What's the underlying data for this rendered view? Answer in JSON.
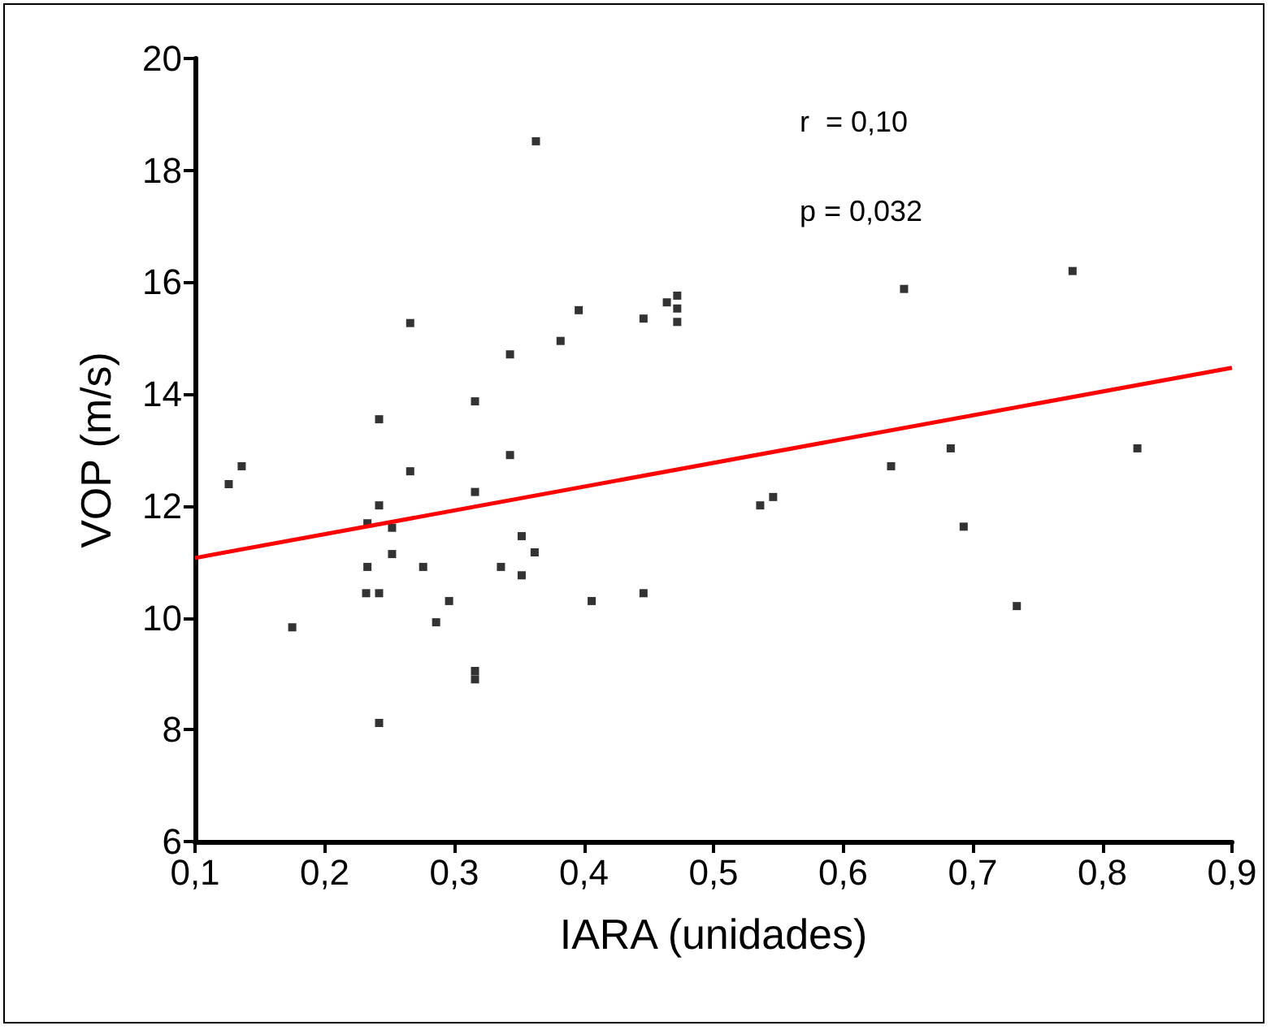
{
  "chart_data": {
    "type": "scatter",
    "xlabel": "IARA (unidades)",
    "ylabel": "VOP (m/s)",
    "annotations": [
      "r  = 0,10",
      "p = 0,032"
    ],
    "xlim": [
      0.1,
      0.9
    ],
    "xticks": [
      {
        "value": 0.1,
        "label": "0,1"
      },
      {
        "value": 0.2,
        "label": "0,2"
      },
      {
        "value": 0.3,
        "label": "0,3"
      },
      {
        "value": 0.4,
        "label": "0,4"
      },
      {
        "value": 0.5,
        "label": "0,5"
      },
      {
        "value": 0.6,
        "label": "0,6"
      },
      {
        "value": 0.7,
        "label": "0,7"
      },
      {
        "value": 0.8,
        "label": "0,8"
      },
      {
        "value": 0.9,
        "label": "0,9"
      }
    ],
    "ylim": [
      6,
      20
    ],
    "yticks": [
      6,
      8,
      10,
      12,
      14,
      16,
      18,
      20
    ],
    "grid": false,
    "marker": "square",
    "series": [
      {
        "type": "scatter",
        "color": "#000000",
        "x": [
          0.126,
          0.136,
          0.175,
          0.232,
          0.233,
          0.233,
          0.242,
          0.242,
          0.242,
          0.242,
          0.252,
          0.252,
          0.266,
          0.266,
          0.276,
          0.286,
          0.296,
          0.316,
          0.316,
          0.316,
          0.316,
          0.336,
          0.343,
          0.343,
          0.352,
          0.352,
          0.362,
          0.363,
          0.382,
          0.396,
          0.406,
          0.446,
          0.446,
          0.464,
          0.472,
          0.472,
          0.472,
          0.536,
          0.546,
          0.637,
          0.647,
          0.683,
          0.693,
          0.734,
          0.777,
          0.827
        ],
        "values": [
          12.39,
          12.71,
          9.83,
          10.44,
          10.91,
          11.69,
          12.01,
          13.55,
          10.44,
          8.12,
          11.61,
          11.14,
          12.62,
          15.27,
          10.91,
          9.92,
          10.3,
          13.87,
          12.25,
          9.05,
          8.9,
          10.91,
          12.91,
          14.71,
          11.46,
          10.76,
          11.17,
          18.52,
          14.95,
          15.5,
          10.3,
          15.35,
          10.44,
          15.64,
          15.76,
          15.53,
          15.29,
          12.01,
          12.16,
          12.71,
          15.88,
          13.03,
          11.63,
          10.21,
          16.2,
          13.03
        ]
      },
      {
        "type": "line",
        "color": "#ff0000",
        "marker": "none",
        "line_style": "solid",
        "x": [
          0.1,
          0.9
        ],
        "values": [
          11.07,
          14.47
        ]
      }
    ]
  }
}
